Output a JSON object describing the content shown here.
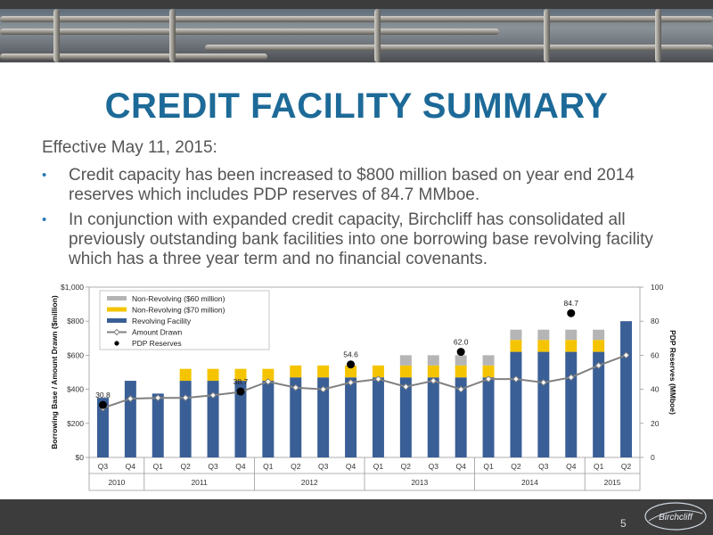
{
  "slide": {
    "title": "CREDIT FACILITY SUMMARY",
    "effective": "Effective May 11, 2015:",
    "bullets": [
      "Credit capacity has been increased to $800 million based on year end 2014 reserves which includes PDP reserves of 84.7 MMboe.",
      "In conjunction with expanded credit capacity, Birchcliff has consolidated all previously outstanding bank facilities into one borrowing base revolving facility which has a three year term and no financial covenants."
    ],
    "page_number": "5",
    "logo_text": "Birchcliff"
  },
  "colors": {
    "title": "#1d6a98",
    "revolving": "#3a5f96",
    "non_revolving_70": "#f5c400",
    "non_revolving_60": "#b5b5b5",
    "amount_drawn": "#808080",
    "pdp": "#000000"
  },
  "chart_data": {
    "type": "bar",
    "categories": [
      "Q3",
      "Q4",
      "Q1",
      "Q2",
      "Q3",
      "Q4",
      "Q1",
      "Q2",
      "Q3",
      "Q4",
      "Q1",
      "Q2",
      "Q3",
      "Q4",
      "Q1",
      "Q2",
      "Q3",
      "Q4",
      "Q1",
      "Q2"
    ],
    "year_groups": [
      {
        "label": "2010",
        "count": 2
      },
      {
        "label": "2011",
        "count": 4
      },
      {
        "label": "2012",
        "count": 4
      },
      {
        "label": "2013",
        "count": 4
      },
      {
        "label": "2014",
        "count": 4
      },
      {
        "label": "2015",
        "count": 2
      }
    ],
    "ylabel": "Borrowing Base / Amount Drawn ($million)",
    "y2label": "PDP Reserves (MMboe)",
    "ylim": [
      0,
      1000
    ],
    "y_ticks": [
      "$0",
      "$200",
      "$400",
      "$600",
      "$800",
      "$1,000"
    ],
    "y2lim": [
      0,
      100
    ],
    "y2_ticks": [
      "0",
      "20",
      "40",
      "60",
      "80",
      "100"
    ],
    "legend": [
      {
        "label": "Non-Revolving ($60 million)",
        "kind": "bar"
      },
      {
        "label": "Non-Revolving ($70 million)",
        "kind": "bar"
      },
      {
        "label": "Revolving Facility",
        "kind": "bar"
      },
      {
        "label": "Amount Drawn",
        "kind": "line"
      },
      {
        "label": "PDP Reserves",
        "kind": "point"
      }
    ],
    "series": [
      {
        "name": "Revolving Facility",
        "values": [
          350,
          450,
          375,
          450,
          450,
          450,
          450,
          470,
          470,
          470,
          470,
          470,
          470,
          470,
          470,
          620,
          620,
          620,
          620,
          800
        ]
      },
      {
        "name": "Non-Revolving ($70 million)",
        "values": [
          0,
          0,
          0,
          70,
          70,
          70,
          70,
          70,
          70,
          70,
          70,
          70,
          70,
          70,
          70,
          70,
          70,
          70,
          70,
          0
        ]
      },
      {
        "name": "Non-Revolving ($60 million)",
        "values": [
          0,
          0,
          0,
          0,
          0,
          0,
          0,
          0,
          0,
          0,
          0,
          60,
          60,
          60,
          60,
          60,
          60,
          60,
          60,
          0
        ]
      },
      {
        "name": "Amount Drawn",
        "axis": "left",
        "values": [
          290,
          345,
          350,
          350,
          365,
          385,
          445,
          410,
          400,
          440,
          460,
          415,
          450,
          400,
          460,
          460,
          440,
          470,
          540,
          600
        ]
      },
      {
        "name": "PDP Reserves",
        "axis": "right",
        "values": [
          30.8,
          null,
          null,
          null,
          null,
          38.7,
          null,
          null,
          null,
          54.6,
          null,
          null,
          null,
          62.0,
          null,
          null,
          null,
          84.7,
          null,
          null
        ]
      }
    ],
    "pdp_labels": [
      {
        "index": 0,
        "text": "30.8"
      },
      {
        "index": 5,
        "text": "38.7"
      },
      {
        "index": 9,
        "text": "54.6"
      },
      {
        "index": 13,
        "text": "62.0"
      },
      {
        "index": 17,
        "text": "84.7"
      }
    ]
  }
}
